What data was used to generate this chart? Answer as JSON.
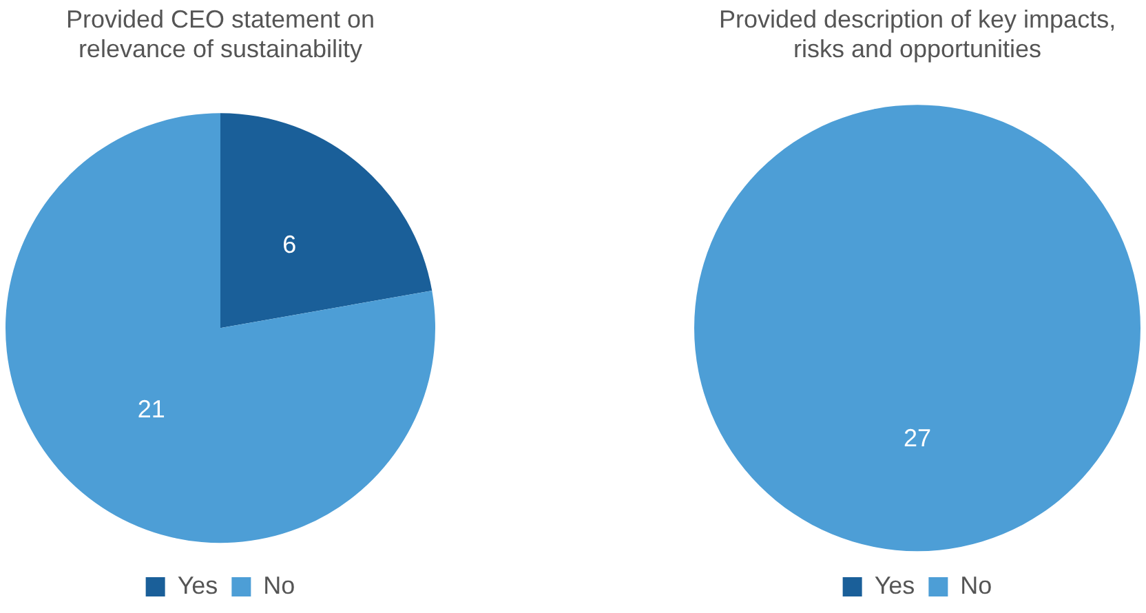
{
  "chart_data": [
    {
      "type": "pie",
      "title": [
        "Provided CEO statement on",
        "relevance of sustainability"
      ],
      "categories": [
        "Yes",
        "No"
      ],
      "values": [
        6,
        21
      ],
      "colors": [
        "#1a5f99",
        "#4d9ed6"
      ],
      "data_labels": true,
      "legend": "bottom"
    },
    {
      "type": "pie",
      "title": [
        "Provided description of key impacts,",
        "risks and opportunities"
      ],
      "categories": [
        "Yes",
        "No"
      ],
      "values": [
        0,
        27
      ],
      "colors": [
        "#1a5f99",
        "#4d9ed6"
      ],
      "value_labels": [
        null,
        "27"
      ],
      "legend": "bottom"
    }
  ]
}
